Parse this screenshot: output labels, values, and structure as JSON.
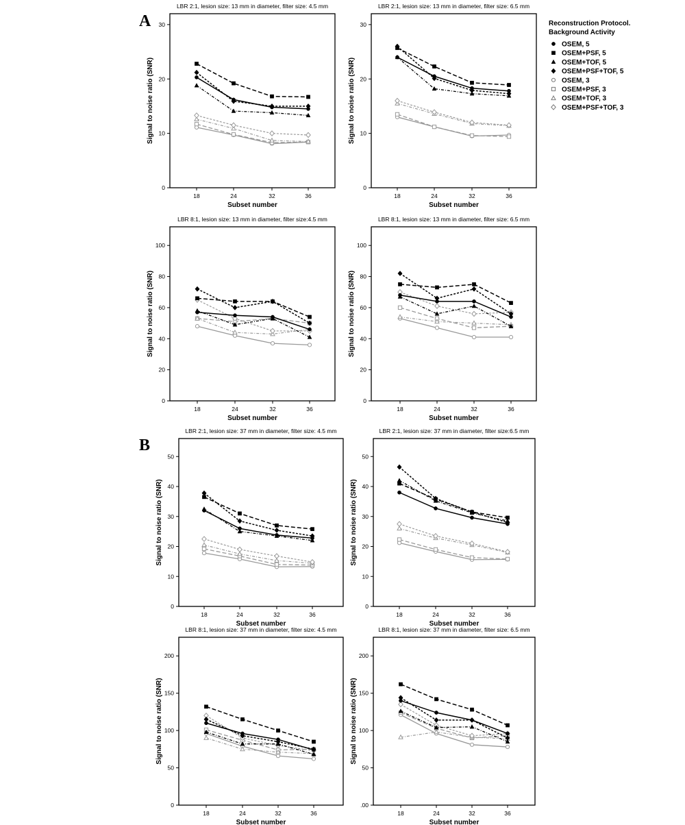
{
  "section_labels": [
    "A",
    "B"
  ],
  "legend": {
    "title_line1": "Reconstruction Protocol.",
    "title_line2": "Background Activity",
    "items": [
      {
        "label": "OSEM, 5",
        "marker": "circle",
        "fill": "#000000"
      },
      {
        "label": "OSEM+PSF, 5",
        "marker": "square",
        "fill": "#000000"
      },
      {
        "label": "OSEM+TOF, 5",
        "marker": "triangle",
        "fill": "#000000"
      },
      {
        "label": "OSEM+PSF+TOF, 5",
        "marker": "diamond",
        "fill": "#000000"
      },
      {
        "label": "OSEM, 3",
        "marker": "circle",
        "fill": "none"
      },
      {
        "label": "OSEM+PSF, 3",
        "marker": "square",
        "fill": "none"
      },
      {
        "label": "OSEM+TOF, 3",
        "marker": "triangle",
        "fill": "none"
      },
      {
        "label": "OSEM+PSF+TOF, 3",
        "marker": "diamond",
        "fill": "none"
      }
    ]
  },
  "chart_data": [
    {
      "type": "line",
      "title": "LBR 2:1, lesion size: 13 mm in diameter, filter size: 4.5 mm",
      "xlabel": "Subset number",
      "ylabel": "Signal to noise ratio (SNR)",
      "x": [
        18,
        24,
        32,
        36
      ],
      "ylim": [
        0,
        32
      ],
      "yticks": [
        0,
        10,
        20,
        30
      ],
      "series": [
        {
          "marker": "circle",
          "values": [
            20.3,
            16.2,
            14.8,
            14.5
          ]
        },
        {
          "marker": "square",
          "values": [
            22.8,
            19.2,
            16.8,
            16.7
          ]
        },
        {
          "marker": "triangle",
          "values": [
            18.8,
            14.1,
            13.8,
            13.3
          ]
        },
        {
          "marker": "diamond",
          "values": [
            21.2,
            15.9,
            15.0,
            15.0
          ]
        },
        {
          "marker": "circle-open",
          "values": [
            11.1,
            9.7,
            8.1,
            8.4
          ]
        },
        {
          "marker": "square-open",
          "values": [
            11.7,
            9.8,
            8.3,
            8.4
          ]
        },
        {
          "marker": "triangle-open",
          "values": [
            12.6,
            10.9,
            8.7,
            8.5
          ]
        },
        {
          "marker": "diamond-open",
          "values": [
            13.3,
            11.5,
            10.0,
            9.7
          ]
        }
      ]
    },
    {
      "type": "line",
      "title": "LBR 2:1, lesion size: 13 mm in diameter, filter size: 6.5 mm",
      "xlabel": "Subset number",
      "ylabel": "Signal to noise ratio (SNR)",
      "x": [
        18,
        24,
        32,
        36
      ],
      "ylim": [
        0,
        32
      ],
      "yticks": [
        0,
        10,
        20,
        30
      ],
      "series": [
        {
          "marker": "circle",
          "values": [
            24.0,
            20.5,
            18.3,
            17.8
          ]
        },
        {
          "marker": "square",
          "values": [
            25.7,
            22.3,
            19.3,
            18.9
          ]
        },
        {
          "marker": "triangle",
          "values": [
            24.0,
            18.2,
            17.3,
            16.9
          ]
        },
        {
          "marker": "diamond",
          "values": [
            26.0,
            20.1,
            17.9,
            17.3
          ]
        },
        {
          "marker": "circle-open",
          "values": [
            13.0,
            11.2,
            9.5,
            9.7
          ]
        },
        {
          "marker": "square-open",
          "values": [
            13.5,
            11.2,
            9.6,
            9.4
          ]
        },
        {
          "marker": "triangle-open",
          "values": [
            15.5,
            13.6,
            11.8,
            11.4
          ]
        },
        {
          "marker": "diamond-open",
          "values": [
            16.0,
            13.9,
            12.0,
            11.5
          ]
        }
      ]
    },
    {
      "type": "line",
      "title": "LBR 8:1, lesion size: 13 mm in diameter, filter size:4.5 mm",
      "xlabel": "Subset number",
      "ylabel": "Signal to noise ratio (SNR)",
      "x": [
        18,
        24,
        32,
        36
      ],
      "ylim": [
        0,
        112
      ],
      "yticks": [
        0,
        20,
        40,
        60,
        80,
        100
      ],
      "series": [
        {
          "marker": "circle",
          "values": [
            57,
            55,
            54,
            46
          ]
        },
        {
          "marker": "square",
          "values": [
            66,
            64,
            64,
            54
          ]
        },
        {
          "marker": "triangle",
          "values": [
            58,
            49,
            53,
            41
          ]
        },
        {
          "marker": "diamond",
          "values": [
            72,
            60,
            64,
            50
          ]
        },
        {
          "marker": "circle-open",
          "values": [
            48,
            42,
            37,
            36
          ]
        },
        {
          "marker": "square-open",
          "values": [
            53,
            51,
            53,
            50
          ]
        },
        {
          "marker": "triangle-open",
          "values": [
            53,
            44,
            43,
            46
          ]
        },
        {
          "marker": "diamond-open",
          "values": [
            65,
            53,
            45,
            45
          ]
        }
      ]
    },
    {
      "type": "line",
      "title": "LBR 8:1, lesion size: 13 mm in diameter, filter size: 6.5 mm",
      "xlabel": "Subset number",
      "ylabel": "Signal to noise ratio (SNR)",
      "x": [
        18,
        24,
        32,
        36
      ],
      "ylim": [
        0,
        112
      ],
      "yticks": [
        0,
        20,
        40,
        60,
        80,
        100
      ],
      "series": [
        {
          "marker": "circle",
          "values": [
            68,
            64,
            64,
            54
          ]
        },
        {
          "marker": "square",
          "values": [
            75,
            73,
            75,
            63
          ]
        },
        {
          "marker": "triangle",
          "values": [
            67,
            56,
            61,
            48
          ]
        },
        {
          "marker": "diamond",
          "values": [
            82,
            66,
            72,
            56
          ]
        },
        {
          "marker": "circle-open",
          "values": [
            53,
            47,
            41,
            41
          ]
        },
        {
          "marker": "square-open",
          "values": [
            60,
            53,
            47,
            48
          ]
        },
        {
          "marker": "triangle-open",
          "values": [
            54,
            51,
            50,
            49
          ]
        },
        {
          "marker": "diamond-open",
          "values": [
            70,
            61,
            56,
            57
          ]
        }
      ]
    },
    {
      "type": "line",
      "title": "LBR 2:1, lesion size: 37 mm in diameter, filter size: 4.5 mm",
      "xlabel": "Subset number",
      "ylabel": "Signal to noise ratio (SNR)",
      "x": [
        18,
        24,
        32,
        36
      ],
      "ylim": [
        0,
        56
      ],
      "yticks": [
        0,
        10,
        20,
        30,
        40,
        50
      ],
      "series": [
        {
          "marker": "circle",
          "values": [
            32.0,
            26.0,
            23.8,
            22.8
          ]
        },
        {
          "marker": "square",
          "values": [
            36.5,
            31.0,
            27.0,
            25.8
          ]
        },
        {
          "marker": "triangle",
          "values": [
            32.5,
            25.0,
            23.5,
            22.0
          ]
        },
        {
          "marker": "diamond",
          "values": [
            37.8,
            28.5,
            25.4,
            23.5
          ]
        },
        {
          "marker": "circle-open",
          "values": [
            17.8,
            15.8,
            13.2,
            13.3
          ]
        },
        {
          "marker": "square-open",
          "values": [
            19.2,
            16.8,
            14.0,
            13.8
          ]
        },
        {
          "marker": "triangle-open",
          "values": [
            20.5,
            17.5,
            15.3,
            14.4
          ]
        },
        {
          "marker": "diamond-open",
          "values": [
            22.5,
            19.0,
            16.8,
            14.8
          ]
        }
      ]
    },
    {
      "type": "line",
      "title": "LBR 2:1, lesion size: 37 mm in diameter, filter size:6.5 mm",
      "xlabel": "Subset number",
      "ylabel": "Signal to noise ratio (SNR)",
      "x": [
        18,
        24,
        32,
        36
      ],
      "ylim": [
        0,
        56
      ],
      "yticks": [
        0,
        10,
        20,
        30,
        40,
        50
      ],
      "series": [
        {
          "marker": "circle",
          "values": [
            38.0,
            32.7,
            29.6,
            27.5
          ]
        },
        {
          "marker": "square",
          "values": [
            41.0,
            35.8,
            31.5,
            29.6
          ]
        },
        {
          "marker": "triangle",
          "values": [
            42.0,
            35.2,
            31.2,
            28.5
          ]
        },
        {
          "marker": "diamond",
          "values": [
            46.5,
            36.0,
            31.5,
            28.0
          ]
        },
        {
          "marker": "circle-open",
          "values": [
            21.2,
            18.3,
            15.6,
            15.7
          ]
        },
        {
          "marker": "square-open",
          "values": [
            22.3,
            19.0,
            16.3,
            15.8
          ]
        },
        {
          "marker": "triangle-open",
          "values": [
            26.0,
            22.8,
            20.5,
            18.0
          ]
        },
        {
          "marker": "diamond-open",
          "values": [
            27.5,
            23.5,
            21.0,
            18.2
          ]
        }
      ]
    },
    {
      "type": "line",
      "title": "LBR 8:1, lesion size: 37 mm in diameter, filter size: 4.5 mm",
      "xlabel": "Subset number",
      "ylabel": "Signal to noise ratio (SNR)",
      "x": [
        18,
        24,
        32,
        36
      ],
      "ylim": [
        0,
        225
      ],
      "yticks": [
        0,
        50,
        100,
        150,
        200
      ],
      "ytick_labels": [
        "0",
        "50",
        "100",
        "150",
        "200"
      ],
      "series": [
        {
          "marker": "circle",
          "values": [
            110,
            96,
            88,
            74
          ]
        },
        {
          "marker": "square",
          "values": [
            132,
            115,
            100,
            85
          ]
        },
        {
          "marker": "triangle",
          "values": [
            98,
            82,
            82,
            68
          ]
        },
        {
          "marker": "diamond",
          "values": [
            115,
            93,
            85,
            75
          ]
        },
        {
          "marker": "circle-open",
          "values": [
            96,
            79,
            66,
            62
          ]
        },
        {
          "marker": "square-open",
          "values": [
            101,
            87,
            74,
            75
          ]
        },
        {
          "marker": "triangle-open",
          "values": [
            90,
            75,
            71,
            69
          ]
        },
        {
          "marker": "diamond-open",
          "values": [
            120,
            90,
            80,
            73
          ]
        }
      ]
    },
    {
      "type": "line",
      "title": "LBR 8:1, lesion size: 37 mm in diameter, filter size: 6.5 mm",
      "xlabel": "Subset number",
      "ylabel": "Signal to noise ratio (SNR)",
      "x": [
        18,
        24,
        32,
        36
      ],
      "ylim": [
        0,
        225
      ],
      "yticks": [
        0,
        50,
        100,
        150,
        200
      ],
      "ytick_labels": [
        ".00",
        "50",
        "100",
        "150",
        "200"
      ],
      "series": [
        {
          "marker": "circle",
          "values": [
            140,
            124,
            114,
            96
          ]
        },
        {
          "marker": "square",
          "values": [
            162,
            142,
            128,
            107
          ]
        },
        {
          "marker": "triangle",
          "values": [
            126,
            104,
            105,
            85
          ]
        },
        {
          "marker": "diamond",
          "values": [
            144,
            114,
            114,
            90
          ]
        },
        {
          "marker": "circle-open",
          "values": [
            121,
            96,
            81,
            78
          ]
        },
        {
          "marker": "square-open",
          "values": [
            124,
            103,
            90,
            93
          ]
        },
        {
          "marker": "triangle-open",
          "values": [
            91,
            98,
            91,
            89
          ]
        },
        {
          "marker": "diamond-open",
          "values": [
            135,
            107,
            93,
            96
          ]
        }
      ]
    }
  ]
}
